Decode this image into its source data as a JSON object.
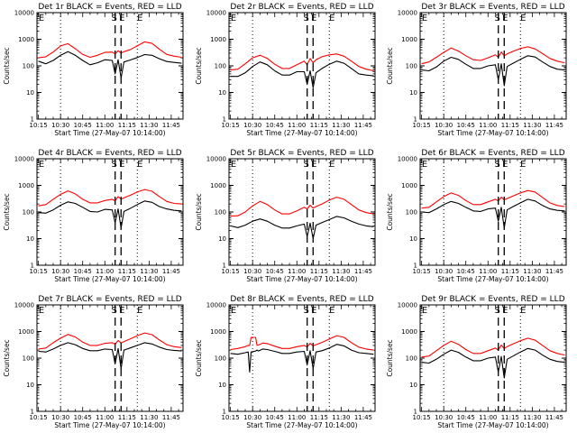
{
  "figure": {
    "colors": {
      "events": "#000000",
      "lld": "#ff0000",
      "axes": "#000000",
      "background": "#ffffff"
    }
  },
  "chart_data": [
    {
      "type": "line",
      "title": "Det 1r BLACK = Events, RED = LLD",
      "xlabel": "Start Time (27-May-07 10:14:00)",
      "ylabel": "Counts/sec",
      "xticks": [
        "10:15",
        "10:30",
        "10:45",
        "11:00",
        "11:15",
        "11:30",
        "11:45"
      ],
      "xlim": [
        "10:14",
        "11:53"
      ],
      "yscale": "log",
      "ylim": [
        1,
        10000
      ],
      "yticks": [
        "1",
        "10",
        "100",
        "1000",
        "10000"
      ],
      "markers": [
        {
          "label": "S",
          "time": "11:07"
        },
        {
          "label": "E",
          "time": "11:11"
        }
      ],
      "x": [
        "10:15",
        "10:20",
        "10:25",
        "10:30",
        "10:35",
        "10:40",
        "10:45",
        "10:50",
        "10:55",
        "11:00",
        "11:05",
        "11:07",
        "11:09",
        "11:11",
        "11:13",
        "11:17",
        "11:22",
        "11:27",
        "11:32",
        "11:37",
        "11:42",
        "11:47",
        "11:52"
      ],
      "series": [
        {
          "name": "BLACK = Events",
          "color": "#000000",
          "values": [
            150,
            120,
            160,
            250,
            340,
            250,
            160,
            110,
            130,
            170,
            160,
            50,
            170,
            35,
            140,
            165,
            205,
            265,
            250,
            185,
            145,
            135,
            125
          ]
        },
        {
          "name": "RED = LLD",
          "color": "#ff0000",
          "values": [
            200,
            220,
            330,
            560,
            680,
            440,
            270,
            210,
            250,
            320,
            330,
            280,
            370,
            300,
            340,
            400,
            560,
            800,
            700,
            420,
            270,
            230,
            210
          ]
        }
      ]
    },
    {
      "type": "line",
      "title": "Det 2r BLACK = Events, RED = LLD",
      "xlabel": "Start Time (27-May-07 10:14:00)",
      "ylabel": "Counts/sec",
      "xticks": [
        "10:15",
        "10:30",
        "10:45",
        "11:00",
        "11:15",
        "11:30",
        "11:45"
      ],
      "xlim": [
        "10:14",
        "11:53"
      ],
      "yscale": "log",
      "ylim": [
        1,
        10000
      ],
      "yticks": [
        "1",
        "10",
        "100",
        "1000",
        "10000"
      ],
      "markers": [
        {
          "label": "S",
          "time": "11:07"
        },
        {
          "label": "E",
          "time": "11:11"
        }
      ],
      "x": [
        "10:15",
        "10:20",
        "10:25",
        "10:30",
        "10:35",
        "10:40",
        "10:45",
        "10:50",
        "10:55",
        "11:00",
        "11:05",
        "11:07",
        "11:09",
        "11:11",
        "11:13",
        "11:17",
        "11:22",
        "11:27",
        "11:32",
        "11:37",
        "11:42",
        "11:47",
        "11:52"
      ],
      "series": [
        {
          "name": "BLACK = Events",
          "color": "#000000",
          "values": [
            40,
            40,
            55,
            95,
            140,
            110,
            65,
            45,
            45,
            60,
            60,
            20,
            65,
            15,
            55,
            80,
            115,
            150,
            125,
            80,
            50,
            45,
            42
          ]
        },
        {
          "name": "RED = LLD",
          "color": "#ff0000",
          "values": [
            70,
            75,
            120,
            200,
            250,
            190,
            115,
            80,
            80,
            110,
            150,
            110,
            190,
            130,
            170,
            220,
            260,
            280,
            230,
            150,
            95,
            75,
            65
          ]
        }
      ]
    },
    {
      "type": "line",
      "title": "Det 3r BLACK = Events, RED = LLD",
      "xlabel": "Start Time (27-May-07 10:14:00)",
      "ylabel": "Counts/sec",
      "xticks": [
        "10:15",
        "10:30",
        "10:45",
        "11:00",
        "11:15",
        "11:30",
        "11:45"
      ],
      "xlim": [
        "10:14",
        "11:53"
      ],
      "yscale": "log",
      "ylim": [
        1,
        10000
      ],
      "yticks": [
        "1",
        "10",
        "100",
        "1000",
        "10000"
      ],
      "markers": [
        {
          "label": "S",
          "time": "11:07"
        },
        {
          "label": "E",
          "time": "11:11"
        }
      ],
      "x": [
        "10:15",
        "10:20",
        "10:25",
        "10:30",
        "10:35",
        "10:40",
        "10:45",
        "10:50",
        "10:55",
        "11:00",
        "11:05",
        "11:07",
        "11:09",
        "11:11",
        "11:13",
        "11:17",
        "11:22",
        "11:27",
        "11:32",
        "11:37",
        "11:42",
        "11:47",
        "11:52"
      ],
      "series": [
        {
          "name": "BLACK = Events",
          "color": "#000000",
          "values": [
            70,
            65,
            90,
            150,
            210,
            175,
            115,
            80,
            80,
            100,
            110,
            30,
            120,
            18,
            95,
            125,
            175,
            240,
            215,
            140,
            95,
            75,
            70
          ]
        },
        {
          "name": "RED = LLD",
          "color": "#ff0000",
          "values": [
            120,
            140,
            210,
            320,
            470,
            360,
            240,
            170,
            160,
            200,
            260,
            210,
            330,
            240,
            280,
            350,
            450,
            520,
            430,
            290,
            190,
            150,
            130
          ]
        }
      ]
    },
    {
      "type": "line",
      "title": "Det 4r BLACK = Events, RED = LLD",
      "xlabel": "Start Time (27-May-07 10:14:00)",
      "ylabel": "Counts/sec",
      "xticks": [
        "10:15",
        "10:30",
        "10:45",
        "11:00",
        "11:15",
        "11:30",
        "11:45"
      ],
      "xlim": [
        "10:14",
        "11:53"
      ],
      "yscale": "log",
      "ylim": [
        1,
        10000
      ],
      "yticks": [
        "1",
        "10",
        "100",
        "1000",
        "10000"
      ],
      "markers": [
        {
          "label": "S",
          "time": "11:07"
        },
        {
          "label": "E",
          "time": "11:11"
        }
      ],
      "x": [
        "10:15",
        "10:20",
        "10:25",
        "10:30",
        "10:35",
        "10:40",
        "10:45",
        "10:50",
        "10:55",
        "11:00",
        "11:05",
        "11:07",
        "11:09",
        "11:11",
        "11:13",
        "11:17",
        "11:22",
        "11:27",
        "11:32",
        "11:37",
        "11:42",
        "11:47",
        "11:52"
      ],
      "series": [
        {
          "name": "BLACK = Events",
          "color": "#000000",
          "values": [
            95,
            90,
            120,
            180,
            240,
            210,
            150,
            105,
            100,
            125,
            120,
            40,
            130,
            25,
            105,
            135,
            190,
            260,
            230,
            160,
            130,
            115,
            110
          ]
        },
        {
          "name": "RED = LLD",
          "color": "#ff0000",
          "values": [
            170,
            190,
            300,
            460,
            620,
            480,
            300,
            220,
            220,
            270,
            300,
            260,
            380,
            300,
            340,
            420,
            560,
            700,
            600,
            380,
            250,
            210,
            200
          ]
        }
      ]
    },
    {
      "type": "line",
      "title": "Det 5r BLACK = Events, RED = LLD",
      "xlabel": "Start Time (27-May-07 10:14:00)",
      "ylabel": "Counts/sec",
      "xticks": [
        "10:15",
        "10:30",
        "10:45",
        "11:00",
        "11:15",
        "11:30",
        "11:45"
      ],
      "xlim": [
        "10:14",
        "11:53"
      ],
      "yscale": "log",
      "ylim": [
        1,
        10000
      ],
      "yticks": [
        "1",
        "10",
        "100",
        "1000",
        "10000"
      ],
      "markers": [
        {
          "label": "S",
          "time": "11:07"
        },
        {
          "label": "E",
          "time": "11:11"
        }
      ],
      "x": [
        "10:15",
        "10:20",
        "10:25",
        "10:30",
        "10:35",
        "10:40",
        "10:45",
        "10:50",
        "10:55",
        "11:00",
        "11:05",
        "11:07",
        "11:09",
        "11:11",
        "11:13",
        "11:17",
        "11:22",
        "11:27",
        "11:32",
        "11:37",
        "11:42",
        "11:47",
        "11:52"
      ],
      "series": [
        {
          "name": "BLACK = Events",
          "color": "#000000",
          "values": [
            30,
            26,
            32,
            45,
            55,
            45,
            32,
            25,
            25,
            30,
            35,
            12,
            38,
            10,
            32,
            40,
            52,
            68,
            60,
            45,
            35,
            30,
            28
          ]
        },
        {
          "name": "RED = LLD",
          "color": "#ff0000",
          "values": [
            70,
            72,
            100,
            170,
            250,
            190,
            120,
            85,
            85,
            110,
            150,
            130,
            180,
            140,
            160,
            200,
            280,
            360,
            300,
            190,
            120,
            95,
            85
          ]
        }
      ]
    },
    {
      "type": "line",
      "title": "Det 6r BLACK = Events, RED = LLD",
      "xlabel": "Start Time (27-May-07 10:14:00)",
      "ylabel": "Counts/sec",
      "xticks": [
        "10:15",
        "10:30",
        "10:45",
        "11:00",
        "11:15",
        "11:30",
        "11:45"
      ],
      "xlim": [
        "10:14",
        "11:53"
      ],
      "yscale": "log",
      "ylim": [
        1,
        10000
      ],
      "yticks": [
        "1",
        "10",
        "100",
        "1000",
        "10000"
      ],
      "markers": [
        {
          "label": "S",
          "time": "11:07"
        },
        {
          "label": "E",
          "time": "11:11"
        }
      ],
      "x": [
        "10:15",
        "10:20",
        "10:25",
        "10:30",
        "10:35",
        "10:40",
        "10:45",
        "10:50",
        "10:55",
        "11:00",
        "11:05",
        "11:07",
        "11:09",
        "11:11",
        "11:13",
        "11:17",
        "11:22",
        "11:27",
        "11:32",
        "11:37",
        "11:42",
        "11:47",
        "11:52"
      ],
      "series": [
        {
          "name": "BLACK = Events",
          "color": "#000000",
          "values": [
            100,
            95,
            130,
            190,
            250,
            210,
            150,
            110,
            105,
            130,
            140,
            45,
            150,
            25,
            120,
            160,
            220,
            300,
            260,
            175,
            130,
            115,
            110
          ]
        },
        {
          "name": "RED = LLD",
          "color": "#ff0000",
          "values": [
            140,
            150,
            240,
            380,
            520,
            420,
            270,
            190,
            190,
            240,
            300,
            260,
            360,
            290,
            320,
            400,
            520,
            640,
            560,
            350,
            220,
            175,
            160
          ]
        }
      ]
    },
    {
      "type": "line",
      "title": "Det 7r BLACK = Events, RED = LLD",
      "xlabel": "Start Time (27-May-07 10:14:00)",
      "ylabel": "Counts/sec",
      "xticks": [
        "10:15",
        "10:30",
        "10:45",
        "11:00",
        "11:15",
        "11:30",
        "11:45"
      ],
      "xlim": [
        "10:14",
        "11:53"
      ],
      "yscale": "log",
      "ylim": [
        1,
        10000
      ],
      "yticks": [
        "1",
        "10",
        "100",
        "1000",
        "10000"
      ],
      "markers": [
        {
          "label": "S",
          "time": "11:07"
        },
        {
          "label": "E",
          "time": "11:11"
        }
      ],
      "x": [
        "10:15",
        "10:20",
        "10:25",
        "10:30",
        "10:35",
        "10:40",
        "10:45",
        "10:50",
        "10:55",
        "11:00",
        "11:05",
        "11:07",
        "11:09",
        "11:11",
        "11:13",
        "11:17",
        "11:22",
        "11:27",
        "11:32",
        "11:37",
        "11:42",
        "11:47",
        "11:52"
      ],
      "series": [
        {
          "name": "BLACK = Events",
          "color": "#000000",
          "values": [
            180,
            170,
            220,
            300,
            380,
            320,
            230,
            190,
            190,
            220,
            210,
            60,
            230,
            40,
            200,
            240,
            300,
            380,
            340,
            260,
            210,
            195,
            185
          ]
        },
        {
          "name": "RED = LLD",
          "color": "#ff0000",
          "values": [
            220,
            240,
            380,
            560,
            780,
            620,
            400,
            300,
            300,
            360,
            380,
            330,
            460,
            370,
            420,
            520,
            700,
            880,
            760,
            480,
            320,
            270,
            250
          ]
        }
      ]
    },
    {
      "type": "line",
      "title": "Det 8r BLACK = Events, RED = LLD",
      "xlabel": "Start Time (27-May-07 10:14:00)",
      "ylabel": "Counts/sec",
      "xticks": [
        "10:15",
        "10:30",
        "10:45",
        "11:00",
        "11:15",
        "11:30",
        "11:45"
      ],
      "xlim": [
        "10:14",
        "11:53"
      ],
      "yscale": "log",
      "ylim": [
        1,
        10000
      ],
      "yticks": [
        "1",
        "10",
        "100",
        "1000",
        "10000"
      ],
      "markers": [
        {
          "label": "S",
          "time": "11:07"
        },
        {
          "label": "E",
          "time": "11:11"
        }
      ],
      "x": [
        "10:15",
        "10:20",
        "10:25",
        "10:27",
        "10:28",
        "10:29",
        "10:32",
        "10:33",
        "10:34",
        "10:37",
        "10:40",
        "10:45",
        "10:50",
        "10:55",
        "11:00",
        "11:05",
        "11:07",
        "11:09",
        "11:11",
        "11:13",
        "11:17",
        "11:22",
        "11:27",
        "11:32",
        "11:37",
        "11:42",
        "11:47",
        "11:52"
      ],
      "series": [
        {
          "name": "BLACK = Events",
          "color": "#000000",
          "values": [
            150,
            140,
            160,
            170,
            30,
            170,
            185,
            200,
            185,
            220,
            210,
            180,
            150,
            150,
            170,
            180,
            55,
            190,
            40,
            170,
            190,
            240,
            330,
            290,
            200,
            160,
            150,
            140
          ]
        },
        {
          "name": "RED = LLD",
          "color": "#ff0000",
          "values": [
            210,
            230,
            270,
            300,
            300,
            600,
            600,
            300,
            310,
            370,
            350,
            280,
            230,
            230,
            270,
            300,
            260,
            360,
            290,
            320,
            390,
            520,
            700,
            600,
            380,
            260,
            220,
            200
          ]
        }
      ]
    },
    {
      "type": "line",
      "title": "Det 9r BLACK = Events, RED = LLD",
      "xlabel": "Start Time (27-May-07 10:14:00)",
      "ylabel": "Counts/sec",
      "xticks": [
        "10:15",
        "10:30",
        "10:45",
        "11:00",
        "11:15",
        "11:30",
        "11:45"
      ],
      "xlim": [
        "10:14",
        "11:53"
      ],
      "yscale": "log",
      "ylim": [
        1,
        10000
      ],
      "yticks": [
        "1",
        "10",
        "100",
        "1000",
        "10000"
      ],
      "markers": [
        {
          "label": "S",
          "time": "11:07"
        },
        {
          "label": "E",
          "time": "11:11"
        }
      ],
      "x": [
        "10:15",
        "10:20",
        "10:25",
        "10:30",
        "10:35",
        "10:40",
        "10:45",
        "10:50",
        "10:55",
        "11:00",
        "11:05",
        "11:07",
        "11:09",
        "11:11",
        "11:13",
        "11:17",
        "11:22",
        "11:27",
        "11:32",
        "11:37",
        "11:42",
        "11:47",
        "11:52"
      ],
      "series": [
        {
          "name": "BLACK = Events",
          "color": "#000000",
          "values": [
            70,
            65,
            90,
            140,
            200,
            165,
            110,
            80,
            80,
            100,
            110,
            30,
            115,
            18,
            90,
            120,
            170,
            230,
            200,
            130,
            90,
            75,
            70
          ]
        },
        {
          "name": "RED = LLD",
          "color": "#ff0000",
          "values": [
            110,
            120,
            190,
            300,
            430,
            330,
            210,
            150,
            150,
            190,
            240,
            200,
            310,
            230,
            270,
            340,
            450,
            560,
            470,
            300,
            190,
            150,
            130
          ]
        }
      ]
    }
  ]
}
